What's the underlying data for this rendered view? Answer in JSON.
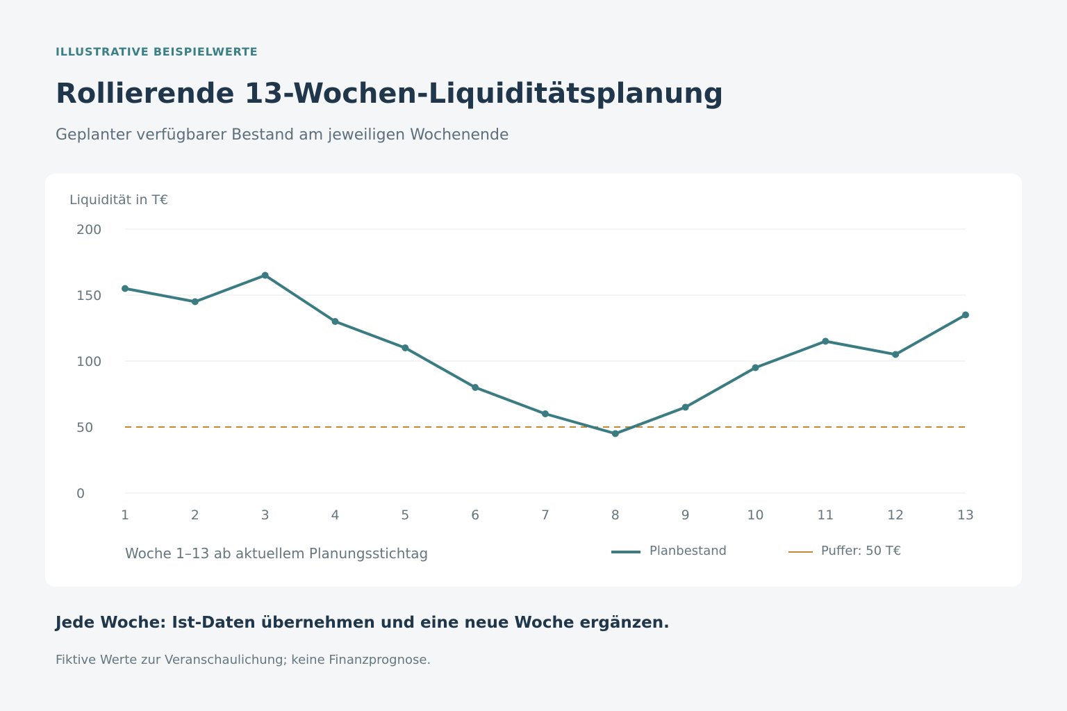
{
  "header": {
    "eyebrow": "ILLUSTRATIVE BEISPIELWERTE",
    "title": "Rollierende 13-Wochen-Liquiditätsplanung",
    "subtitle": "Geplanter verfügbarer Bestand am jeweiligen Wochenende"
  },
  "chart_data": {
    "type": "line",
    "ylabel": "Liquidität in T€",
    "xlabel": "Woche 1–13 ab aktuellem Planungsstichtag",
    "x": [
      1,
      2,
      3,
      4,
      5,
      6,
      7,
      8,
      9,
      10,
      11,
      12,
      13
    ],
    "ylim": [
      0,
      200
    ],
    "yticks": [
      0,
      50,
      100,
      150,
      200
    ],
    "grid": true,
    "series": [
      {
        "name": "Planbestand",
        "color": "#3a7c82",
        "values": [
          155,
          145,
          165,
          130,
          110,
          80,
          60,
          45,
          65,
          95,
          115,
          105,
          135
        ]
      }
    ],
    "reference_line": {
      "name": "Puffer: 50 T€",
      "value": 50,
      "color": "#c4892f",
      "style": "dashed"
    },
    "legend_placement": "bottom-right"
  },
  "footer": {
    "headline": "Jede Woche: Ist-Daten übernehmen und eine neue Woche ergänzen.",
    "note": "Fiktive Werte zur Veranschaulichung; keine Finanzprognose."
  }
}
